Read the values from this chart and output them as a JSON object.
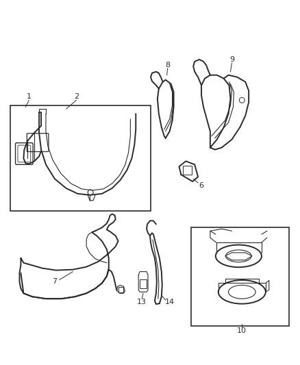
{
  "bg_color": "#ffffff",
  "line_color": "#2a2a2a",
  "label_color": "#222222",
  "figsize": [
    4.39,
    5.33
  ],
  "dpi": 100
}
